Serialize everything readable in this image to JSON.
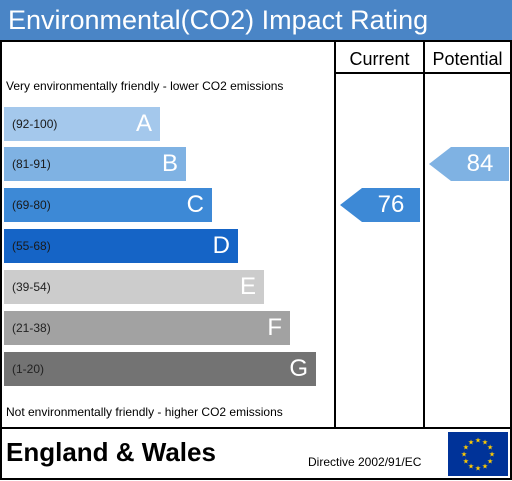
{
  "title": "Environmental(CO2) Impact Rating",
  "columns": {
    "current": "Current",
    "potential": "Potential"
  },
  "top_note": "Very environmentally friendly - lower CO2 emissions",
  "bottom_note": "Not environmentally friendly - higher CO2 emissions",
  "bands": [
    {
      "range": "(92-100)",
      "letter": "A",
      "color": "#a4c8ec"
    },
    {
      "range": "(81-91)",
      "letter": "B",
      "color": "#7fb2e3"
    },
    {
      "range": "(69-80)",
      "letter": "C",
      "color": "#3d89d6"
    },
    {
      "range": "(55-68)",
      "letter": "D",
      "color": "#1564c6"
    },
    {
      "range": "(39-54)",
      "letter": "E",
      "color": "#cccccc"
    },
    {
      "range": "(21-38)",
      "letter": "F",
      "color": "#a2a2a2"
    },
    {
      "range": "(1-20)",
      "letter": "G",
      "color": "#737373"
    }
  ],
  "current_rating": {
    "value": "76",
    "band": "C",
    "color": "#3d89d6"
  },
  "potential_rating": {
    "value": "84",
    "band": "B",
    "color": "#7fb2e3"
  },
  "footer": {
    "region": "England & Wales",
    "directive": "Directive 2002/91/EC"
  },
  "flag_icon": "eu-flag-icon"
}
